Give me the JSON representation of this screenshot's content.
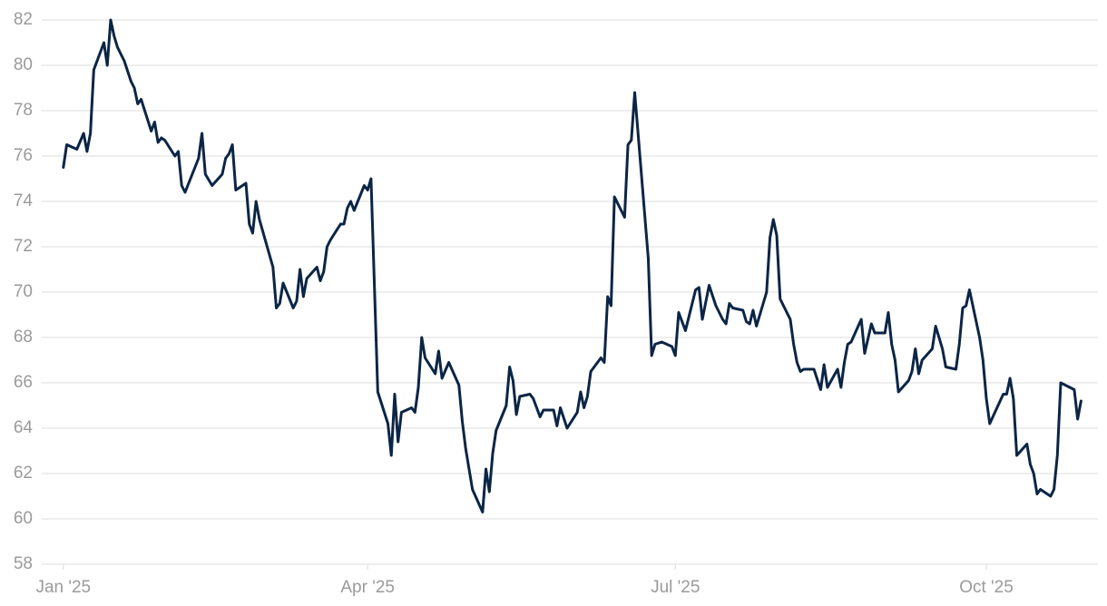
{
  "chart_data": {
    "type": "line",
    "color": "#0b2545",
    "grid": true,
    "xlim": [
      -8,
      306
    ],
    "ylim": [
      58,
      82
    ],
    "yticks": [
      58,
      60,
      62,
      64,
      66,
      68,
      70,
      72,
      74,
      76,
      78,
      80,
      82
    ],
    "xticks": [
      {
        "value": 0,
        "label": "Jan '25"
      },
      {
        "value": 90,
        "label": "Apr '25"
      },
      {
        "value": 181,
        "label": "Jul '25"
      },
      {
        "value": 273,
        "label": "Oct '25"
      }
    ],
    "x": [
      0,
      1,
      4,
      6,
      7,
      8,
      9,
      12,
      13,
      14,
      15,
      16,
      18,
      20,
      21,
      22,
      23,
      26,
      27,
      28,
      29,
      30,
      33,
      34,
      35,
      36,
      40,
      41,
      42,
      44,
      47,
      48,
      49,
      50,
      51,
      54,
      55,
      56,
      57,
      58,
      62,
      63,
      64,
      65,
      68,
      69,
      70,
      71,
      72,
      75,
      76,
      77,
      78,
      79,
      82,
      83,
      84,
      85,
      86,
      89,
      90,
      91,
      93,
      96,
      97,
      98,
      99,
      100,
      103,
      104,
      105,
      106,
      107,
      110,
      111,
      112,
      114,
      117,
      118,
      119,
      121,
      124,
      125,
      126,
      127,
      128,
      131,
      132,
      133,
      134,
      135,
      138,
      139,
      141,
      142,
      145,
      146,
      147,
      149,
      152,
      153,
      154,
      155,
      156,
      159,
      160,
      161,
      162,
      163,
      166,
      167,
      168,
      169,
      173,
      174,
      175,
      177,
      180,
      181,
      182,
      184,
      187,
      188,
      189,
      191,
      193,
      195,
      196,
      197,
      198,
      201,
      202,
      203,
      204,
      205,
      208,
      209,
      210,
      211,
      212,
      215,
      216,
      217,
      218,
      219,
      222,
      224,
      225,
      226,
      229,
      230,
      231,
      232,
      233,
      236,
      237,
      239,
      240,
      243,
      244,
      245,
      246,
      247,
      250,
      251,
      252,
      253,
      254,
      257,
      258,
      260,
      261,
      264,
      265,
      266,
      267,
      268,
      271,
      272,
      273,
      274,
      278,
      279,
      280,
      281,
      282,
      285,
      286,
      287,
      288,
      289,
      292,
      293,
      294,
      295,
      299,
      300,
      301
    ],
    "series": [
      {
        "values": [
          75.5,
          76.5,
          76.3,
          77.0,
          76.2,
          77.0,
          79.8,
          81.0,
          80.0,
          82.0,
          81.3,
          80.8,
          80.2,
          79.3,
          79.0,
          78.3,
          78.5,
          77.1,
          77.5,
          76.6,
          76.8,
          76.7,
          76.0,
          76.2,
          74.7,
          74.4,
          75.9,
          77.0,
          75.2,
          74.7,
          75.2,
          75.9,
          76.1,
          76.5,
          74.5,
          74.8,
          73.0,
          72.6,
          74.0,
          73.2,
          71.1,
          69.3,
          69.5,
          70.4,
          69.3,
          69.6,
          71.0,
          69.8,
          70.6,
          71.1,
          70.5,
          70.9,
          72.0,
          72.3,
          73.0,
          73.0,
          73.7,
          74.0,
          73.6,
          74.7,
          74.5,
          75.0,
          65.6,
          64.2,
          62.8,
          65.5,
          63.4,
          64.7,
          64.9,
          64.7,
          65.8,
          68.0,
          67.1,
          66.4,
          67.4,
          66.2,
          66.9,
          65.9,
          64.3,
          63.1,
          61.3,
          60.3,
          62.2,
          61.2,
          62.9,
          63.9,
          65.0,
          66.7,
          66.1,
          64.6,
          65.4,
          65.5,
          65.3,
          64.5,
          64.8,
          64.8,
          64.1,
          64.9,
          64.0,
          64.7,
          65.6,
          64.9,
          65.4,
          66.5,
          67.1,
          66.9,
          69.8,
          69.4,
          74.2,
          73.3,
          76.5,
          76.7,
          78.8,
          71.5,
          67.2,
          67.7,
          67.8,
          67.6,
          67.2,
          69.1,
          68.3,
          70.1,
          70.2,
          68.8,
          70.3,
          69.4,
          68.8,
          68.6,
          69.5,
          69.3,
          69.2,
          68.7,
          68.6,
          69.2,
          68.5,
          70.0,
          72.4,
          73.2,
          72.5,
          69.7,
          68.8,
          67.7,
          66.9,
          66.5,
          66.6,
          66.6,
          65.7,
          66.8,
          65.8,
          66.6,
          65.8,
          66.9,
          67.7,
          67.8,
          68.8,
          67.3,
          68.6,
          68.2,
          68.2,
          69.1,
          67.7,
          67.0,
          65.6,
          66.1,
          66.5,
          67.5,
          66.4,
          67.0,
          67.5,
          68.5,
          67.5,
          66.7,
          66.6,
          67.7,
          69.3,
          69.4,
          70.1,
          68.0,
          67.0,
          65.3,
          64.2,
          65.5,
          65.5,
          66.2,
          65.3,
          62.8,
          63.3,
          62.4,
          62.0,
          61.1,
          61.3,
          61.0,
          61.3,
          62.8,
          66.0,
          65.7,
          64.4,
          65.2
        ]
      }
    ]
  }
}
